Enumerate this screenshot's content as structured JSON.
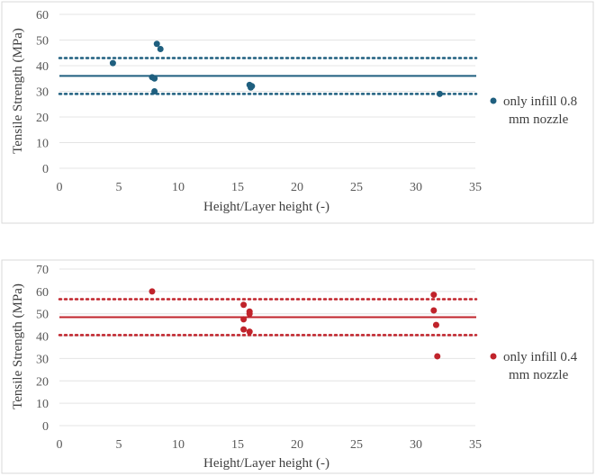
{
  "chart_data": [
    {
      "type": "scatter",
      "xlabel": "Height/Layer height (-)",
      "ylabel": "Tensile Strength (MPa)",
      "xlim": [
        0,
        35
      ],
      "ylim": [
        0,
        60
      ],
      "xticks": [
        0,
        5,
        10,
        15,
        20,
        25,
        30,
        35
      ],
      "yticks": [
        0,
        10,
        20,
        30,
        40,
        50,
        60
      ],
      "grid": true,
      "legend_position": "right",
      "color": "#1f5f7f",
      "series": [
        {
          "name_line1": "only infill 0.8",
          "name_line2": "mm nozzle",
          "points": [
            {
              "x": 4.5,
              "y": 41
            },
            {
              "x": 7.8,
              "y": 35.5
            },
            {
              "x": 8.0,
              "y": 35
            },
            {
              "x": 8.0,
              "y": 30
            },
            {
              "x": 8.2,
              "y": 48.5
            },
            {
              "x": 8.5,
              "y": 46.5
            },
            {
              "x": 16.0,
              "y": 32.5
            },
            {
              "x": 16.1,
              "y": 31.5
            },
            {
              "x": 16.2,
              "y": 32
            },
            {
              "x": 32.0,
              "y": 29
            }
          ]
        }
      ],
      "reference_lines": {
        "mean": 36,
        "upper": 43,
        "lower": 29
      }
    },
    {
      "type": "scatter",
      "xlabel": "Height/Layer height (-)",
      "ylabel": "Tensile Strength (MPa)",
      "xlim": [
        0,
        35
      ],
      "ylim": [
        0,
        70
      ],
      "xticks": [
        0,
        5,
        10,
        15,
        20,
        25,
        30,
        35
      ],
      "yticks": [
        0,
        10,
        20,
        30,
        40,
        50,
        60,
        70
      ],
      "grid": true,
      "legend_position": "right",
      "color": "#c0232b",
      "series": [
        {
          "name_line1": "only infill 0.4",
          "name_line2": "mm nozzle",
          "points": [
            {
              "x": 7.8,
              "y": 60
            },
            {
              "x": 15.5,
              "y": 54
            },
            {
              "x": 15.5,
              "y": 47.5
            },
            {
              "x": 15.5,
              "y": 43
            },
            {
              "x": 16.0,
              "y": 42
            },
            {
              "x": 16.0,
              "y": 50
            },
            {
              "x": 16.0,
              "y": 51
            },
            {
              "x": 31.5,
              "y": 58.5
            },
            {
              "x": 31.5,
              "y": 51.5
            },
            {
              "x": 31.7,
              "y": 45
            },
            {
              "x": 31.8,
              "y": 31
            }
          ]
        }
      ],
      "reference_lines": {
        "mean": 48.5,
        "upper": 56.5,
        "lower": 40.5
      }
    }
  ]
}
